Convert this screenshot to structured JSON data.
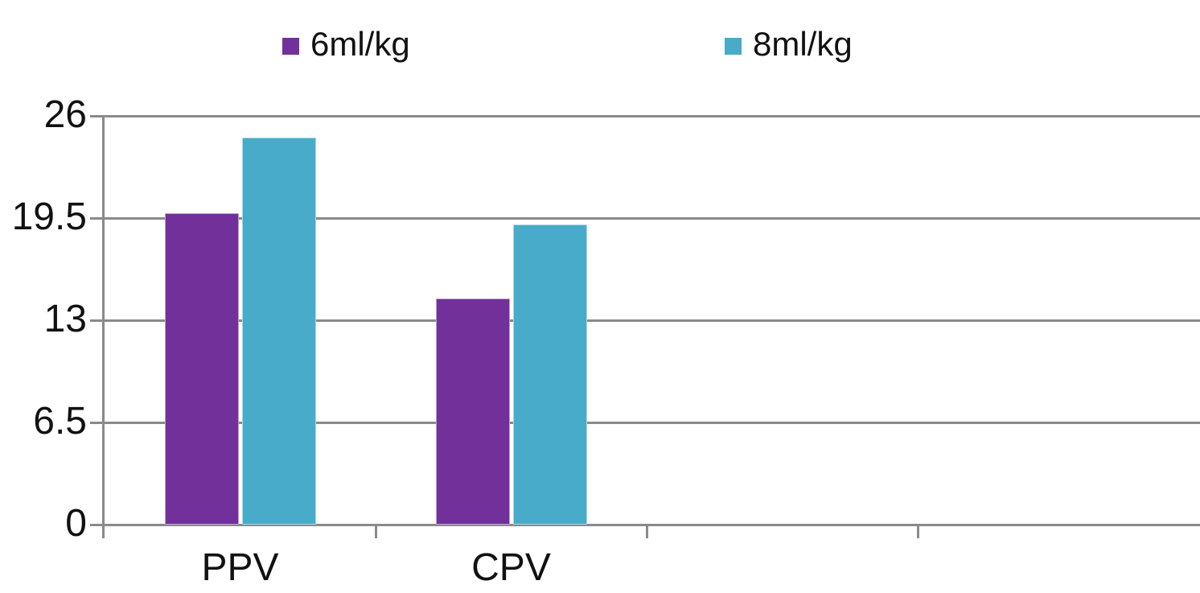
{
  "chart_data": {
    "type": "bar",
    "title": "",
    "categories": [
      "PPV",
      "CPV"
    ],
    "series": [
      {
        "name": "6ml/kg",
        "color": "#72309B",
        "values": [
          19.8,
          14.4
        ]
      },
      {
        "name": "8ml/kg",
        "color": "#47ABC9",
        "values": [
          24.6,
          19.1
        ]
      }
    ],
    "ylim": [
      0,
      26
    ],
    "yticks": [
      26,
      19.5,
      13,
      6.5,
      0
    ],
    "ytick_labels": [
      "26",
      "19.5",
      "13",
      "6.5",
      "0"
    ],
    "xlabel": "",
    "ylabel": "",
    "grid": true,
    "legend_position": "top",
    "num_category_slots": 4,
    "axis_color": "#8a8a8a",
    "text_color": "#111111"
  }
}
